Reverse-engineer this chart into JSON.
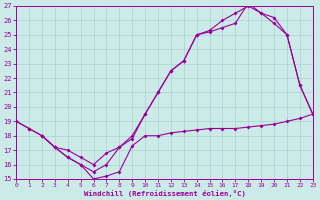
{
  "xlabel": "Windchill (Refroidissement éolien,°C)",
  "xlim": [
    0,
    23
  ],
  "ylim": [
    15,
    27
  ],
  "yticks": [
    15,
    16,
    17,
    18,
    19,
    20,
    21,
    22,
    23,
    24,
    25,
    26,
    27
  ],
  "xticks": [
    0,
    1,
    2,
    3,
    4,
    5,
    6,
    7,
    8,
    9,
    10,
    11,
    12,
    13,
    14,
    15,
    16,
    17,
    18,
    19,
    20,
    21,
    22,
    23
  ],
  "bg_color": "#cceae8",
  "grid_color": "#aad4d2",
  "line_color": "#990099",
  "curve1_x": [
    0,
    1,
    2,
    3,
    4,
    5,
    6,
    7,
    8,
    9,
    10,
    11,
    12,
    13,
    14,
    15,
    16,
    17,
    18,
    19,
    20,
    21,
    22,
    23
  ],
  "curve1_y": [
    19.0,
    18.5,
    18.0,
    17.2,
    16.5,
    16.0,
    15.0,
    15.2,
    15.5,
    17.3,
    18.0,
    18.0,
    18.2,
    18.3,
    18.4,
    18.5,
    18.5,
    18.5,
    18.6,
    18.7,
    18.8,
    19.0,
    19.2,
    19.5
  ],
  "curve2_x": [
    0,
    1,
    2,
    3,
    4,
    5,
    6,
    7,
    8,
    9,
    10,
    11,
    12,
    13,
    14,
    15,
    16,
    17,
    18,
    19,
    20,
    21,
    22,
    23
  ],
  "curve2_y": [
    19.0,
    18.5,
    18.0,
    17.2,
    16.5,
    16.0,
    15.5,
    16.0,
    17.2,
    17.8,
    19.5,
    21.0,
    22.5,
    23.2,
    25.0,
    25.2,
    25.5,
    25.8,
    27.2,
    26.5,
    26.2,
    25.0,
    21.5,
    19.5
  ],
  "curve3_x": [
    2,
    3,
    4,
    5,
    6,
    7,
    8,
    9,
    10,
    11,
    12,
    13,
    14,
    15,
    16,
    17,
    18,
    19,
    20,
    21,
    22,
    23
  ],
  "curve3_y": [
    18.0,
    17.2,
    17.0,
    16.5,
    16.0,
    16.8,
    17.2,
    18.0,
    19.5,
    21.0,
    22.5,
    23.2,
    25.0,
    25.3,
    26.0,
    26.5,
    27.0,
    26.5,
    25.8,
    25.0,
    21.5,
    19.5
  ]
}
